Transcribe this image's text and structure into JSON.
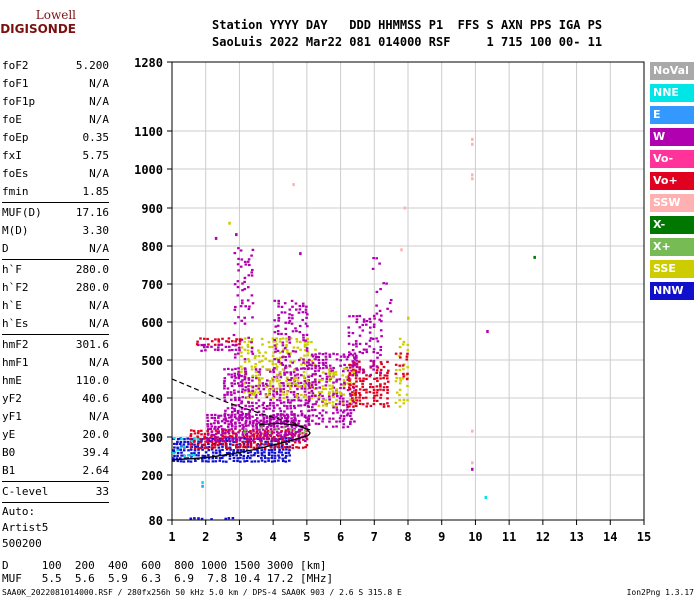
{
  "logo": {
    "line1": "Lowell",
    "line2": "DIGISONDE"
  },
  "header": {
    "line1": "Station YYYY DAY   DDD HHMMSS P1  FFS S AXN PPS IGA PS",
    "line2": "SaoLuis 2022 Mar22 081 014000 RSF     1 715 100 00- 11"
  },
  "params": [
    {
      "name": "foF2",
      "value": "5.200"
    },
    {
      "name": "foF1",
      "value": "N/A"
    },
    {
      "name": "foF1p",
      "value": "N/A"
    },
    {
      "name": "foE",
      "value": "N/A"
    },
    {
      "name": "foEp",
      "value": "0.35"
    },
    {
      "name": "fxI",
      "value": "5.75"
    },
    {
      "name": "foEs",
      "value": "N/A"
    },
    {
      "name": "fmin",
      "value": "1.85"
    },
    {
      "sep": true
    },
    {
      "name": "MUF(D)",
      "value": "17.16"
    },
    {
      "name": "M(D)",
      "value": "3.30"
    },
    {
      "name": "D",
      "value": "N/A"
    },
    {
      "sep": true
    },
    {
      "name": "h`F",
      "value": "280.0"
    },
    {
      "name": "h`F2",
      "value": "280.0"
    },
    {
      "name": "h`E",
      "value": "N/A"
    },
    {
      "name": "h`Es",
      "value": "N/A"
    },
    {
      "sep": true
    },
    {
      "name": "hmF2",
      "value": "301.6"
    },
    {
      "name": "hmF1",
      "value": "N/A"
    },
    {
      "name": "hmE",
      "value": "110.0"
    },
    {
      "name": "yF2",
      "value": "40.6"
    },
    {
      "name": "yF1",
      "value": "N/A"
    },
    {
      "name": "yE",
      "value": "20.0"
    },
    {
      "name": "B0",
      "value": "39.4"
    },
    {
      "name": "B1",
      "value": "2.64"
    },
    {
      "sep": true
    },
    {
      "name": "C-level",
      "value": "33"
    },
    {
      "sep": true
    },
    {
      "text": "Auto:"
    },
    {
      "text": "Artist5"
    },
    {
      "text": "500200"
    }
  ],
  "legend": [
    {
      "label": "NoVal",
      "color": "#a9a9a9"
    },
    {
      "label": "NNE",
      "color": "#00e5e5"
    },
    {
      "label": "E",
      "color": "#3399ff"
    },
    {
      "label": "W",
      "color": "#b000b0"
    },
    {
      "label": "Vo-",
      "color": "#ff3399"
    },
    {
      "label": "Vo+",
      "color": "#e00020"
    },
    {
      "label": "SSW",
      "color": "#ffb0b0"
    },
    {
      "label": "X-",
      "color": "#007700"
    },
    {
      "label": "X+",
      "color": "#77bb55"
    },
    {
      "label": "SSE",
      "color": "#cccc00"
    },
    {
      "label": "NNW",
      "color": "#1010cc"
    }
  ],
  "muf_table": {
    "line1": "D     100  200  400  600  800 1000 1500 3000 [km]",
    "line2": "MUF   5.5  5.6  5.9  6.3  6.9  7.8 10.4 17.2 [MHz]"
  },
  "footer": "SAA0K_2022081014000.RSF / 280fx256h 50 kHz 5.0 km / DPS-4 SAA0K 903 / 2.6 S 315.8 E",
  "version": "Ion2Png 1.3.17",
  "chart_data": {
    "type": "scatter",
    "xlabel": "",
    "ylabel": "",
    "xlim": [
      1,
      15
    ],
    "ylim": [
      80,
      1280
    ],
    "x_ticks": [
      1,
      2,
      3,
      4,
      5,
      6,
      7,
      8,
      9,
      10,
      11,
      12,
      13,
      14,
      15
    ],
    "y_ticks": [
      80,
      200,
      300,
      400,
      500,
      600,
      700,
      800,
      900,
      1000,
      1100,
      1280
    ],
    "grid": true,
    "legend_placement": "right",
    "profile_curve": [
      [
        1.0,
        240
      ],
      [
        1.6,
        243
      ],
      [
        2.2,
        248
      ],
      [
        2.8,
        256
      ],
      [
        3.4,
        266
      ],
      [
        4.0,
        279
      ],
      [
        4.5,
        290
      ],
      [
        4.9,
        300
      ],
      [
        5.05,
        305
      ],
      [
        5.1,
        310
      ]
    ],
    "profile_upper": [
      [
        5.1,
        310
      ],
      [
        5.0,
        320
      ],
      [
        4.7,
        330
      ],
      [
        4.2,
        335
      ],
      [
        3.6,
        332
      ]
    ],
    "dashed_trace": [
      [
        1.0,
        450
      ],
      [
        1.8,
        420
      ],
      [
        2.5,
        393
      ],
      [
        3.0,
        378
      ],
      [
        3.5,
        364
      ],
      [
        4.0,
        350
      ],
      [
        4.6,
        336
      ],
      [
        5.1,
        318
      ]
    ],
    "echo_clusters": [
      {
        "x": [
          1.0,
          4.5
        ],
        "y": [
          240,
          300
        ],
        "color": "NNW",
        "density": 0.9
      },
      {
        "x": [
          1.5,
          5.0
        ],
        "y": [
          270,
          320
        ],
        "color": "Vo+",
        "density": 0.8
      },
      {
        "x": [
          2.0,
          5.0
        ],
        "y": [
          290,
          360
        ],
        "color": "W",
        "density": 0.8
      },
      {
        "x": [
          2.5,
          5.0
        ],
        "y": [
          330,
          480
        ],
        "color": "W",
        "density": 0.6
      },
      {
        "x": [
          3.0,
          5.2
        ],
        "y": [
          400,
          560
        ],
        "color": "SSE",
        "density": 0.4
      },
      {
        "x": [
          4.0,
          5.0
        ],
        "y": [
          480,
          660
        ],
        "color": "W",
        "density": 0.35
      },
      {
        "x": [
          1.7,
          3.0
        ],
        "y": [
          540,
          560
        ],
        "color": "Vo+",
        "density": 0.6
      },
      {
        "x": [
          1.7,
          3.0
        ],
        "y": [
          525,
          545
        ],
        "color": "W",
        "density": 0.5
      },
      {
        "x": [
          2.8,
          3.4
        ],
        "y": [
          360,
          800
        ],
        "color": "W",
        "density": 0.22
      },
      {
        "x": [
          5.0,
          6.4
        ],
        "y": [
          330,
          520
        ],
        "color": "W",
        "density": 0.5
      },
      {
        "x": [
          5.3,
          6.4
        ],
        "y": [
          380,
          480
        ],
        "color": "SSE",
        "density": 0.4
      },
      {
        "x": [
          6.2,
          7.4
        ],
        "y": [
          380,
          500
        ],
        "color": "Vo+",
        "density": 0.5
      },
      {
        "x": [
          6.2,
          7.2
        ],
        "y": [
          460,
          620
        ],
        "color": "W",
        "density": 0.35
      },
      {
        "x": [
          6.9,
          7.5
        ],
        "y": [
          600,
          780
        ],
        "color": "W",
        "density": 0.15
      },
      {
        "x": [
          7.6,
          8.0
        ],
        "y": [
          380,
          560
        ],
        "color": "SSE",
        "density": 0.35
      },
      {
        "x": [
          7.6,
          8.0
        ],
        "y": [
          440,
          520
        ],
        "color": "Vo+",
        "density": 0.3
      },
      {
        "x": [
          1.0,
          1.8
        ],
        "y": [
          255,
          300
        ],
        "color": "NNE",
        "density": 0.3
      },
      {
        "x": [
          1.5,
          2.8
        ],
        "y": [
          85,
          88
        ],
        "color": "NNW",
        "density": 0.7
      },
      {
        "x": [
          3.0,
          5.0
        ],
        "y": [
          310,
          330
        ],
        "color": "X+",
        "density": 0.15
      }
    ],
    "sparse_points": [
      {
        "x": 9.9,
        "y": 1065,
        "color": "SSW"
      },
      {
        "x": 9.9,
        "y": 1078,
        "color": "SSW"
      },
      {
        "x": 9.9,
        "y": 985,
        "color": "SSW"
      },
      {
        "x": 9.9,
        "y": 975,
        "color": "SSW"
      },
      {
        "x": 9.9,
        "y": 315,
        "color": "SSW"
      },
      {
        "x": 9.9,
        "y": 232,
        "color": "SSW"
      },
      {
        "x": 9.9,
        "y": 215,
        "color": "W"
      },
      {
        "x": 10.35,
        "y": 575,
        "color": "W"
      },
      {
        "x": 10.3,
        "y": 140,
        "color": "NNE"
      },
      {
        "x": 11.75,
        "y": 770,
        "color": "X-"
      },
      {
        "x": 1.9,
        "y": 180,
        "color": "NNE"
      },
      {
        "x": 1.9,
        "y": 170,
        "color": "E"
      },
      {
        "x": 2.7,
        "y": 860,
        "color": "SSE"
      },
      {
        "x": 2.3,
        "y": 820,
        "color": "W"
      },
      {
        "x": 2.9,
        "y": 830,
        "color": "W"
      },
      {
        "x": 7.8,
        "y": 790,
        "color": "SSW"
      },
      {
        "x": 7.9,
        "y": 900,
        "color": "SSW"
      },
      {
        "x": 8.0,
        "y": 610,
        "color": "SSE"
      },
      {
        "x": 4.8,
        "y": 780,
        "color": "W"
      },
      {
        "x": 4.6,
        "y": 960,
        "color": "SSW"
      }
    ]
  }
}
